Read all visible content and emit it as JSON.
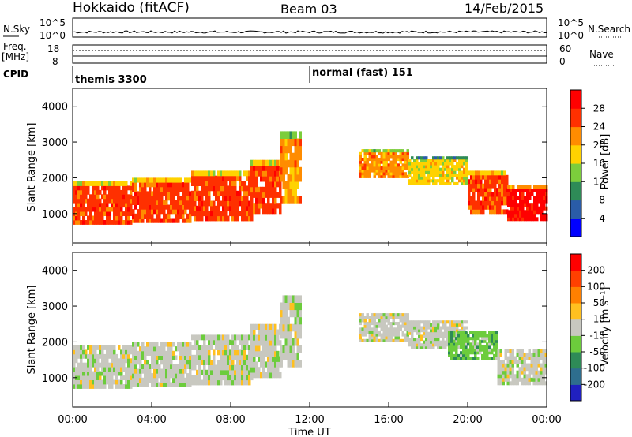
{
  "header": {
    "station": "Hokkaido (fitACF)",
    "beam": "Beam 03",
    "date": "14/Feb/2015"
  },
  "noise_panel": {
    "left_label": "N.Sky",
    "right_label": "N.Search",
    "left_ticks": [
      "10^5",
      "10^0"
    ],
    "right_ticks": [
      "10^5",
      "10^0"
    ]
  },
  "freq_panel": {
    "left_label_1": "Freq.",
    "left_label_2": "[MHz]",
    "right_label": "Nave",
    "left_ticks": [
      "18",
      "8"
    ],
    "right_ticks": [
      "60",
      "0"
    ]
  },
  "cpid": {
    "label": "CPID",
    "segments": [
      {
        "name": "themis 3300",
        "start_hour": 0
      },
      {
        "name": "normal (fast) 151",
        "start_hour": 12
      }
    ]
  },
  "x_axis": {
    "title": "Time UT",
    "ticks": [
      "00:00",
      "04:00",
      "08:00",
      "12:00",
      "16:00",
      "20:00",
      "00:00"
    ]
  },
  "chart_data": [
    {
      "type": "heatmap",
      "name": "power",
      "ylabel": "Slant Range [km]",
      "yticks": [
        "4000",
        "3000",
        "2000",
        "1000"
      ],
      "ylim": [
        180,
        4500
      ],
      "xlim_hours": [
        0,
        24
      ],
      "colorbar_label": "Power [dB]",
      "colorbar_ticks": [
        "28",
        "24",
        "20",
        "16",
        "12",
        "8",
        "4"
      ],
      "colors": [
        "#0000ff",
        "#2a5ca8",
        "#2e8b57",
        "#7ccd3c",
        "#ffd200",
        "#ff8c00",
        "#ff3000",
        "#ff0000"
      ],
      "bands": [
        {
          "x0": 0.0,
          "x1": 3.0,
          "y0": 700,
          "y1": 1900,
          "level": 6
        },
        {
          "x0": 3.0,
          "x1": 6.0,
          "y0": 750,
          "y1": 2000,
          "level": 6
        },
        {
          "x0": 6.0,
          "x1": 9.0,
          "y0": 800,
          "y1": 2200,
          "level": 6
        },
        {
          "x0": 9.0,
          "x1": 10.5,
          "y0": 1000,
          "y1": 2500,
          "level": 6
        },
        {
          "x0": 10.5,
          "x1": 11.5,
          "y0": 1300,
          "y1": 3300,
          "level": 5
        },
        {
          "x0": 14.5,
          "x1": 17.0,
          "y0": 2000,
          "y1": 2800,
          "level": 5
        },
        {
          "x0": 17.0,
          "x1": 20.0,
          "y0": 1800,
          "y1": 2600,
          "level": 4
        },
        {
          "x0": 20.0,
          "x1": 22.0,
          "y0": 1000,
          "y1": 2200,
          "level": 6
        },
        {
          "x0": 22.0,
          "x1": 24.0,
          "y0": 800,
          "y1": 1800,
          "level": 7
        }
      ]
    },
    {
      "type": "heatmap",
      "name": "velocity",
      "ylabel": "Slant Range [km]",
      "yticks": [
        "4000",
        "3000",
        "2000",
        "1000"
      ],
      "ylim": [
        180,
        4500
      ],
      "xlim_hours": [
        0,
        24
      ],
      "colorbar_label": "Velocity [m s⁻¹]",
      "colorbar_ticks": [
        "200",
        "100",
        "50",
        "15",
        "-15",
        "-50",
        "-100",
        "-200"
      ],
      "colors": [
        "#2020c0",
        "#2e6e8e",
        "#2e8b57",
        "#6ccc3c",
        "#c8c8c0",
        "#ffc020",
        "#ff8000",
        "#ff4000",
        "#ff0000"
      ],
      "bands": [
        {
          "x0": 0.0,
          "x1": 3.0,
          "y0": 700,
          "y1": 1900,
          "level": 4
        },
        {
          "x0": 3.0,
          "x1": 6.0,
          "y0": 750,
          "y1": 2000,
          "level": 4
        },
        {
          "x0": 6.0,
          "x1": 9.0,
          "y0": 800,
          "y1": 2200,
          "level": 4
        },
        {
          "x0": 9.0,
          "x1": 10.5,
          "y0": 1000,
          "y1": 2500,
          "level": 4
        },
        {
          "x0": 10.5,
          "x1": 11.5,
          "y0": 1300,
          "y1": 3300,
          "level": 4
        },
        {
          "x0": 14.5,
          "x1": 17.0,
          "y0": 2000,
          "y1": 2800,
          "level": 4
        },
        {
          "x0": 17.0,
          "x1": 20.0,
          "y0": 1800,
          "y1": 2600,
          "level": 4
        },
        {
          "x0": 19.0,
          "x1": 21.5,
          "y0": 1500,
          "y1": 2300,
          "level": 3
        },
        {
          "x0": 21.5,
          "x1": 24.0,
          "y0": 800,
          "y1": 1800,
          "level": 4
        }
      ]
    }
  ]
}
